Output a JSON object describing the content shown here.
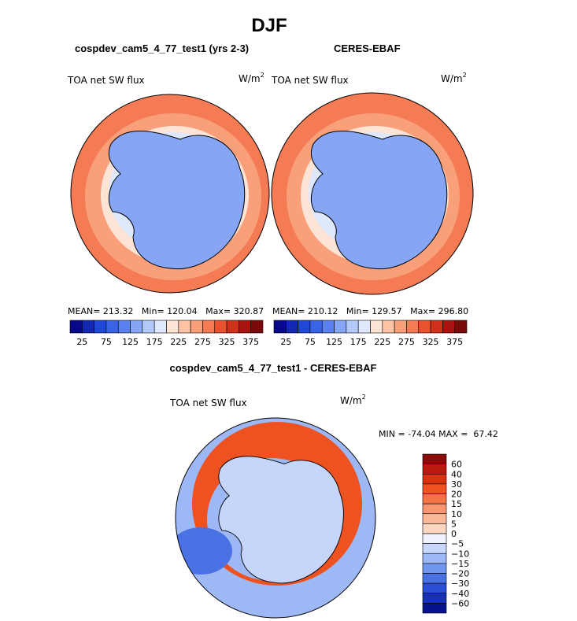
{
  "chart_data": [
    {
      "type": "heatmap",
      "projection": "south-polar-stereographic",
      "panel": "model",
      "title": "cospdev_cam5_4_77_test1 (yrs 2-3)",
      "variable": "TOA net SW flux",
      "units": "W/m",
      "units_power": "2",
      "stats": {
        "mean_label": "MEAN=",
        "mean": "213.32",
        "min_label": "Min=",
        "min": "120.04",
        "max_label": "Max=",
        "max": "320.87"
      },
      "colorbar": {
        "tick_labels": [
          "25",
          "75",
          "125",
          "175",
          "225",
          "275",
          "325",
          "375"
        ],
        "colors": [
          "#08088a",
          "#1329b4",
          "#2147d6",
          "#3a63e8",
          "#5b80f0",
          "#86a5f5",
          "#b3c9fa",
          "#dfe8fd",
          "#fde4d4",
          "#fcc4a5",
          "#f9a07b",
          "#f47b54",
          "#e9522f",
          "#d1301c",
          "#a81510",
          "#7a0a08"
        ]
      },
      "field_levels": {
        "antarctica": 125,
        "inner_ring": 200,
        "middle_ring": 260,
        "outer_ring": 290
      }
    },
    {
      "type": "heatmap",
      "projection": "south-polar-stereographic",
      "panel": "obs",
      "title": "CERES-EBAF",
      "variable": "TOA net SW flux",
      "units": "W/m",
      "units_power": "2",
      "stats": {
        "mean_label": "MEAN=",
        "mean": "210.12",
        "min_label": "Min=",
        "min": "129.57",
        "max_label": "Max=",
        "max": "296.80"
      },
      "colorbar": {
        "tick_labels": [
          "25",
          "75",
          "125",
          "175",
          "225",
          "275",
          "325",
          "375"
        ],
        "colors": [
          "#08088a",
          "#1329b4",
          "#2147d6",
          "#3a63e8",
          "#5b80f0",
          "#86a5f5",
          "#b3c9fa",
          "#dfe8fd",
          "#fde4d4",
          "#fcc4a5",
          "#f9a07b",
          "#f47b54",
          "#e9522f",
          "#d1301c",
          "#a81510",
          "#7a0a08"
        ]
      },
      "field_levels": {
        "antarctica": 135,
        "inner_ring": 210,
        "middle_ring": 255,
        "outer_ring": 280
      }
    },
    {
      "type": "heatmap",
      "projection": "south-polar-stereographic",
      "panel": "difference",
      "title": "cospdev_cam5_4_77_test1 - CERES-EBAF",
      "variable": "TOA net SW flux",
      "units": "W/m",
      "units_power": "2",
      "stats": {
        "min_label": "MIN =",
        "min": "-74.04",
        "max_label": "MAX =",
        "max": "67.42"
      },
      "colorbar": {
        "tick_labels": [
          "60",
          "40",
          "30",
          "20",
          "15",
          "10",
          "5",
          "0",
          "−5",
          "−10",
          "−15",
          "−20",
          "−30",
          "−40",
          "−60"
        ],
        "colors": [
          "#8c0a08",
          "#b81a0e",
          "#d8330f",
          "#ee5220",
          "#f57445",
          "#f99570",
          "#fbb796",
          "#fdd7c2",
          "#eef2fe",
          "#c6d6fa",
          "#9db8f5",
          "#7196ee",
          "#4a72e4",
          "#2a4fd6",
          "#1730b8",
          "#08128a"
        ]
      },
      "field_levels": {
        "antarctica": -10,
        "ring": 25,
        "outer": -15
      }
    }
  ],
  "figure": {
    "title": "DJF"
  }
}
